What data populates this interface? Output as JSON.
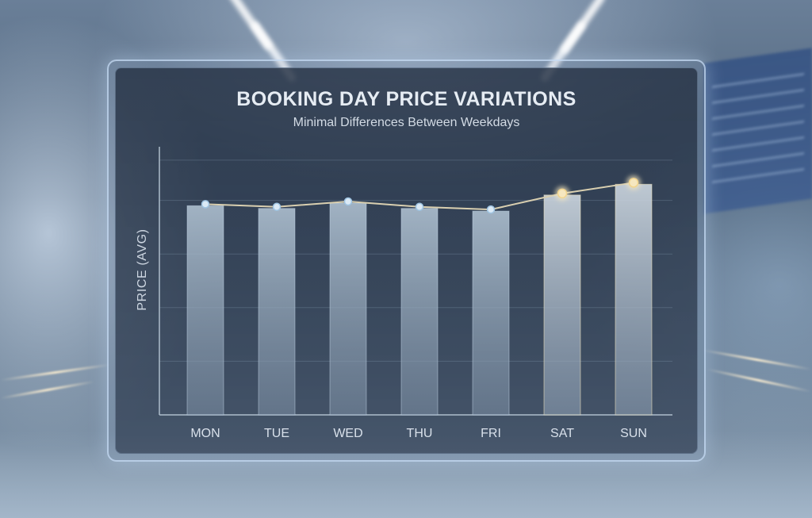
{
  "chart_data": {
    "type": "bar",
    "title": "BOOKING DAY PRICE VARIATIONS",
    "subtitle": "Minimal Differences Between Weekdays",
    "xlabel": "",
    "ylabel": "PRICE (AVG)",
    "categories": [
      "MON",
      "TUE",
      "WED",
      "THU",
      "FRI",
      "SAT",
      "SUN"
    ],
    "values": [
      78,
      77,
      79,
      77,
      76,
      82,
      86
    ],
    "ylim": [
      0,
      100
    ],
    "grid": true,
    "overlay": "line-with-markers",
    "colors": {
      "bar": "#a9bccd",
      "bar_highlight": "#c3cfda",
      "line": "#d9cfb0",
      "marker": "#dbeaf6",
      "marker_highlight": "#f6e7bf"
    }
  }
}
